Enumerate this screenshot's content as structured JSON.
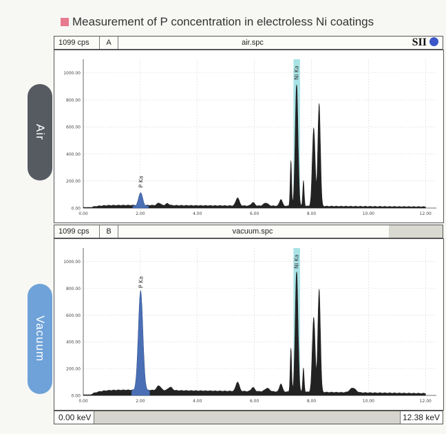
{
  "title": "Measurement of P concentration in electroless Ni coatings",
  "logo": "SII",
  "colors": {
    "title_square": "#e8798e",
    "p_peak": "#4a6fb5",
    "ni_band": "#a9e3e6",
    "spectrum": "#222222",
    "air_pill": "#555b61",
    "vacuum_pill": "#6ea2d8"
  },
  "footer": {
    "left": "0.00 keV",
    "right": "12.38 keV"
  },
  "panels": [
    {
      "id": "air",
      "label": "Air",
      "cps": "1099 cps",
      "panel": "A",
      "file": "air.spc"
    },
    {
      "id": "vacuum",
      "label": "Vacuum",
      "cps": "1099 cps",
      "panel": "B",
      "file": "vacuum.spc"
    }
  ],
  "chart_data": [
    {
      "type": "area",
      "title": "air.spc",
      "xlim": [
        0,
        12.38
      ],
      "ylim": [
        0,
        1100
      ],
      "x_ticks": [
        "0.00",
        "2.00",
        "4.00",
        "6.00",
        "8.00",
        "10.00",
        "12.00"
      ],
      "y_ticks": [
        "0.00",
        "200.00",
        "400.00",
        "600.00",
        "800.00",
        "1000.00"
      ],
      "annotations": [
        {
          "text": "P Ka",
          "x": 2.01
        },
        {
          "text": "Ni Ka",
          "x": 7.47
        }
      ],
      "peaks": [
        {
          "x": 2.01,
          "y": 100,
          "w": 0.07,
          "color": "p"
        },
        {
          "x": 2.65,
          "y": 18,
          "w": 0.06
        },
        {
          "x": 2.95,
          "y": 14,
          "w": 0.06
        },
        {
          "x": 5.41,
          "y": 60,
          "w": 0.06
        },
        {
          "x": 5.95,
          "y": 25,
          "w": 0.06
        },
        {
          "x": 6.4,
          "y": 22,
          "w": 0.08
        },
        {
          "x": 6.93,
          "y": 50,
          "w": 0.05
        },
        {
          "x": 7.28,
          "y": 340,
          "w": 0.025
        },
        {
          "x": 7.48,
          "y": 900,
          "w": 0.05
        },
        {
          "x": 7.72,
          "y": 190,
          "w": 0.025
        },
        {
          "x": 8.08,
          "y": 580,
          "w": 0.05
        },
        {
          "x": 8.27,
          "y": 760,
          "w": 0.045
        }
      ],
      "background": 18,
      "ni_band": [
        7.37,
        7.6
      ]
    },
    {
      "type": "area",
      "title": "vacuum.spc",
      "xlim": [
        0,
        12.38
      ],
      "ylim": [
        0,
        1100
      ],
      "x_ticks": [
        "0.00",
        "2.00",
        "4.00",
        "6.00",
        "8.00",
        "10.00",
        "12.00"
      ],
      "y_ticks": [
        "0.00",
        "200.00",
        "400.00",
        "600.00",
        "800.00",
        "1000.00"
      ],
      "annotations": [
        {
          "text": "P Ka",
          "x": 2.01
        },
        {
          "text": "Ni Ka",
          "x": 7.47
        }
      ],
      "peaks": [
        {
          "x": 2.01,
          "y": 750,
          "w": 0.08,
          "color": "p"
        },
        {
          "x": 2.65,
          "y": 35,
          "w": 0.07
        },
        {
          "x": 3.05,
          "y": 25,
          "w": 0.07
        },
        {
          "x": 5.41,
          "y": 70,
          "w": 0.06
        },
        {
          "x": 5.95,
          "y": 30,
          "w": 0.06
        },
        {
          "x": 6.45,
          "y": 25,
          "w": 0.08
        },
        {
          "x": 6.93,
          "y": 60,
          "w": 0.05
        },
        {
          "x": 7.28,
          "y": 330,
          "w": 0.025
        },
        {
          "x": 7.48,
          "y": 900,
          "w": 0.05
        },
        {
          "x": 7.72,
          "y": 180,
          "w": 0.025
        },
        {
          "x": 8.08,
          "y": 560,
          "w": 0.05
        },
        {
          "x": 8.27,
          "y": 770,
          "w": 0.045
        },
        {
          "x": 9.45,
          "y": 35,
          "w": 0.1
        }
      ],
      "background": 40,
      "ni_band": [
        7.37,
        7.6
      ]
    }
  ]
}
